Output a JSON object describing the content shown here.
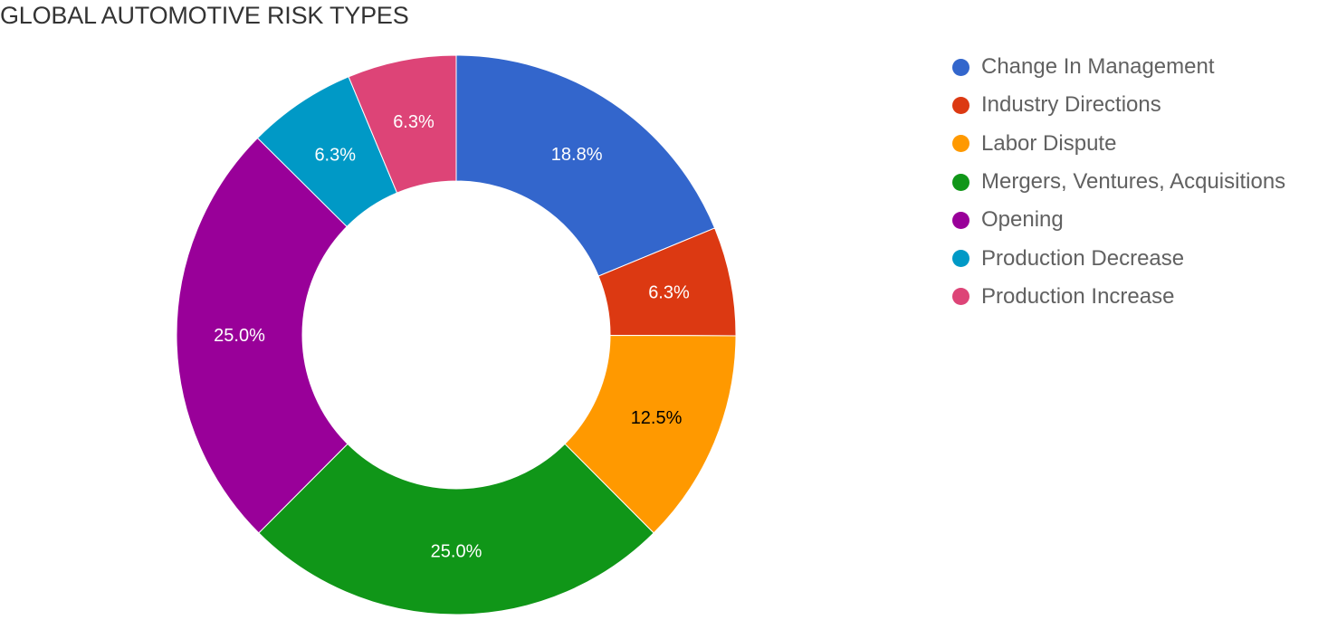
{
  "chart_data": {
    "type": "pie",
    "title": "GLOBAL AUTOMOTIVE RISK TYPES",
    "donut": true,
    "legend_position": "right",
    "categories": [
      "Change In Management",
      "Industry Directions",
      "Labor Dispute",
      "Mergers, Ventures, Acquisitions",
      "Opening",
      "Production Decrease",
      "Production Increase"
    ],
    "values": [
      18.8,
      6.3,
      12.5,
      25.0,
      25.0,
      6.3,
      6.3
    ],
    "data_labels": [
      "18.8%",
      "6.3%",
      "12.5%",
      "25.0%",
      "25.0%",
      "6.3%",
      "6.3%"
    ],
    "label_colors": [
      "#ffffff",
      "#ffffff",
      "#000000",
      "#ffffff",
      "#ffffff",
      "#ffffff",
      "#ffffff"
    ],
    "colors": [
      "#3366cc",
      "#dc3912",
      "#ff9900",
      "#109618",
      "#990099",
      "#0099c6",
      "#dd4477"
    ]
  }
}
